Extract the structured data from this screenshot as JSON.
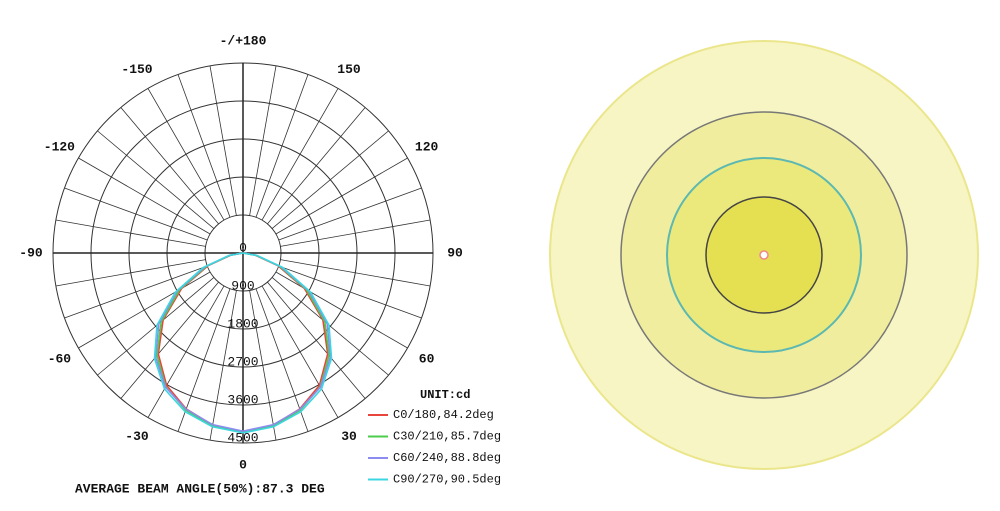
{
  "chart_data": {
    "type": "polar",
    "angle_ticks": [
      {
        "value": 180,
        "label": "-/+180"
      },
      -150,
      150,
      -120,
      120,
      -90,
      90,
      -60,
      60,
      -30,
      30,
      0
    ],
    "x": [
      0,
      10,
      20,
      30,
      40,
      50,
      60,
      70,
      80,
      90
    ],
    "ylim": [
      0,
      4500
    ],
    "yticks": [
      0,
      900,
      1800,
      2700,
      3600,
      4500
    ],
    "unit": "UNIT:cd",
    "series": [
      {
        "name": "C0/180,84.2deg",
        "color": "#e8463c",
        "values": [
          4230,
          4140,
          3930,
          3620,
          3120,
          2470,
          1680,
          880,
          290,
          0
        ]
      },
      {
        "name": "C30/210,85.7deg",
        "color": "#4ccc4c",
        "values": [
          4250,
          4160,
          3960,
          3660,
          3170,
          2530,
          1730,
          920,
          310,
          0
        ]
      },
      {
        "name": "C60/240,88.8deg",
        "color": "#8c8cf0",
        "values": [
          4220,
          4130,
          3940,
          3670,
          3220,
          2600,
          1800,
          960,
          320,
          0
        ]
      },
      {
        "name": "C90/270,90.5deg",
        "color": "#3cd6e0",
        "values": [
          4260,
          4180,
          4000,
          3720,
          3260,
          2660,
          1850,
          1000,
          340,
          0
        ]
      }
    ],
    "footer": "AVERAGE BEAM ANGLE(50%):87.3 DEG"
  }
}
